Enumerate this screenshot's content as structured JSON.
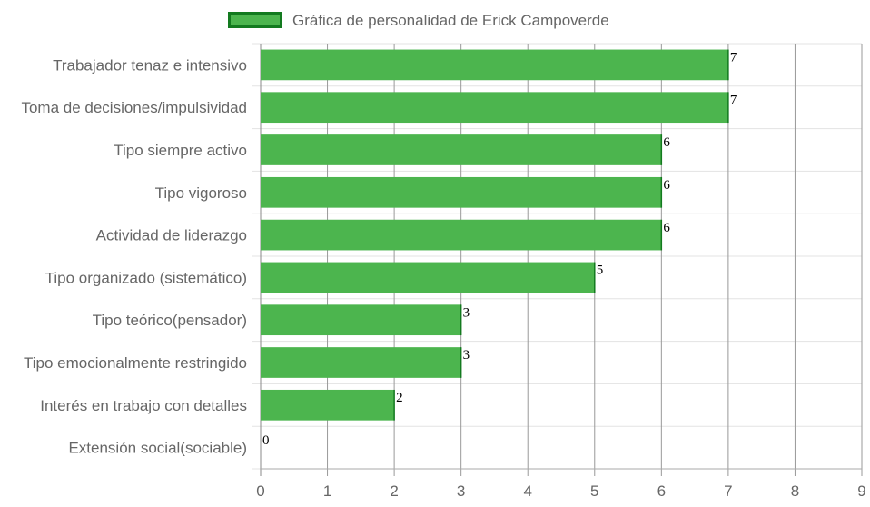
{
  "chart_data": {
    "type": "bar",
    "orientation": "horizontal",
    "title": "",
    "legend": {
      "label": "Gráfica de personalidad de Erick Campoverde",
      "position": "top"
    },
    "categories": [
      "Trabajador tenaz e intensivo",
      "Toma de decisiones/impulsividad",
      "Tipo siempre activo",
      "Tipo vigoroso",
      "Actividad de liderazgo",
      "Tipo organizado (sistemático)",
      "Tipo teórico(pensador)",
      "Tipo emocionalmente restringido",
      "Interés en trabajo con detalles",
      "Extensión social(sociable)"
    ],
    "series": [
      {
        "name": "Gráfica de personalidad de Erick Campoverde",
        "values": [
          7,
          7,
          6,
          6,
          6,
          5,
          3,
          3,
          2,
          0
        ]
      }
    ],
    "xlim": [
      0,
      9
    ],
    "xticks": [
      0,
      1,
      2,
      3,
      4,
      5,
      6,
      7,
      8,
      9
    ],
    "grid": true,
    "data_labels": true,
    "colors": {
      "bar": "#4cb54e",
      "bar_border": "#137a1f",
      "grid": "#e3e3e3",
      "vgrid": "#999999",
      "text": "#666666"
    }
  }
}
